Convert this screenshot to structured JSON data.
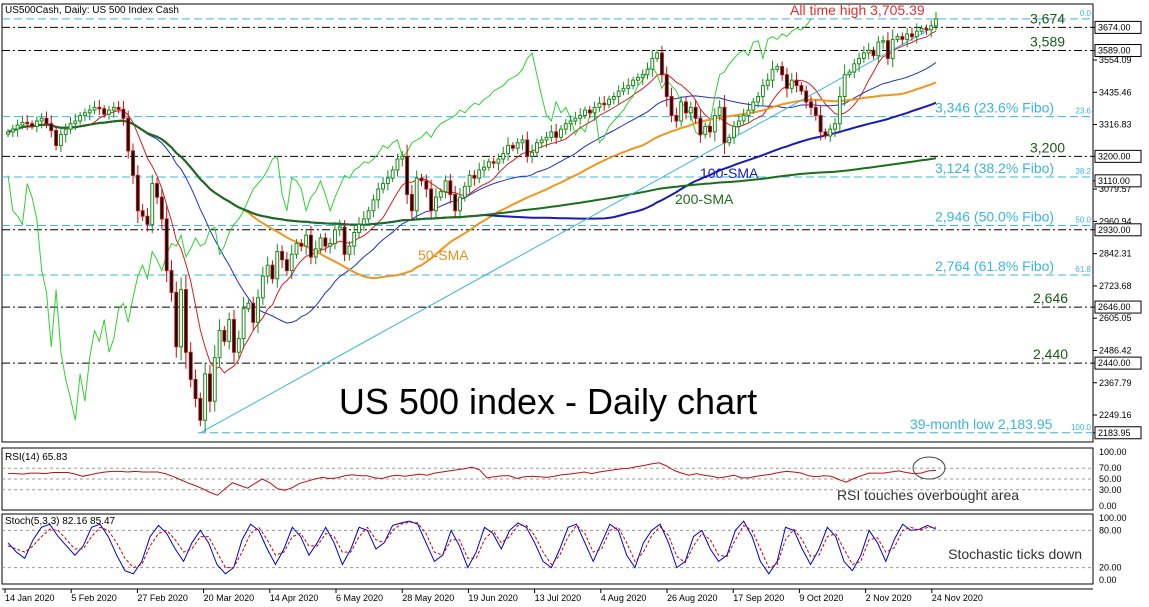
{
  "chart_data": [
    {
      "type": "candlestick",
      "title": "US500Cash, Daily:  US 500 Index Cash",
      "headline": "US 500 index - Daily chart",
      "ylim": [
        2150,
        3760
      ],
      "y_ticks": [
        "3674.00",
        "3589.00",
        "3554.09",
        "3435.46",
        "3316.83",
        "3200.00",
        "3110.00",
        "3079.57",
        "2960.94",
        "2930.00",
        "2842.31",
        "2723.68",
        "2646.00",
        "2605.05",
        "2486.42",
        "2440.00",
        "2367.79",
        "2249.16",
        "2183.95"
      ],
      "y_tick_values": [
        3674,
        3589,
        3554.09,
        3435.46,
        3316.83,
        3200,
        3110,
        3079.57,
        2960.94,
        2930,
        2842.31,
        2723.68,
        2646,
        2605.05,
        2486.42,
        2440,
        2367.79,
        2249.16,
        2183.95
      ],
      "price_boxes": [
        "3674.00",
        "3589.00",
        "3200.00",
        "3110.00",
        "2930.00",
        "2646.00",
        "2440.00",
        "2183.95"
      ],
      "x_labels": [
        "14 Jan 2020",
        "5 Feb 2020",
        "27 Feb 2020",
        "20 Mar 2020",
        "14 Apr 2020",
        "6 May 2020",
        "28 May 2020",
        "19 Jun 2020",
        "13 Jul 2020",
        "4 Aug 2020",
        "26 Aug 2020",
        "17 Sep 2020",
        "9 Oct 2020",
        "2 Nov 2020",
        "24 Nov 2020"
      ],
      "levels": [
        {
          "name": "All time high",
          "label": "All time high 3,705.39",
          "value": 3705.39,
          "style": "dashed",
          "color": "#3cb4e0"
        },
        {
          "name": "3,674",
          "label": "3,674",
          "value": 3674,
          "style": "dashdot",
          "color": "#000000"
        },
        {
          "name": "3,589",
          "label": "3,589",
          "value": 3589,
          "style": "dashdot",
          "color": "#000000"
        },
        {
          "name": "23.6% Fibo",
          "label": "3,346 (23.6% Fibo)",
          "value": 3346,
          "style": "dashed",
          "color": "#3cb4e0"
        },
        {
          "name": "3,200",
          "label": "3,200",
          "value": 3200,
          "style": "dashdot",
          "color": "#000000"
        },
        {
          "name": "38.2% Fibo",
          "label": "3,124 (38.2% Fibo)",
          "value": 3124,
          "style": "dashed",
          "color": "#3cb4e0"
        },
        {
          "name": "50.0% Fibo",
          "label": "2,946 (50.0% Fibo)",
          "value": 2946,
          "style": "dashed",
          "color": "#3cb4e0"
        },
        {
          "name": "2,930",
          "label": "",
          "value": 2930,
          "style": "dashdot",
          "color": "#000000"
        },
        {
          "name": "61.8% Fibo",
          "label": "2,764 (61.8% Fibo)",
          "value": 2764,
          "style": "dashed",
          "color": "#3cb4e0"
        },
        {
          "name": "2,646",
          "label": "2,646",
          "value": 2646,
          "style": "dashdot",
          "color": "#000000"
        },
        {
          "name": "2,440",
          "label": "2,440",
          "value": 2440,
          "style": "dashdot",
          "color": "#000000"
        },
        {
          "name": "39-month low",
          "label": "39-month low 2,183.95",
          "value": 2183.95,
          "style": "dashed",
          "color": "#3cb4e0"
        }
      ],
      "fib_tags": [
        "0.0",
        "23.6",
        "38.2",
        "50.0",
        "61.8",
        "100.0"
      ],
      "fib_tag_values": [
        3705.39,
        3346,
        3124,
        2946,
        2764,
        2183.95
      ],
      "annotations": [
        "100-SMA",
        "200-SMA",
        "50-SMA"
      ],
      "closes": [
        3290,
        3300,
        3315,
        3325,
        3320,
        3310,
        3330,
        3340,
        3320,
        3295,
        3240,
        3280,
        3300,
        3320,
        3330,
        3350,
        3360,
        3370,
        3380,
        3375,
        3355,
        3370,
        3380,
        3373,
        3340,
        3220,
        3130,
        3000,
        2980,
        2950,
        3100,
        3050,
        2970,
        2780,
        2700,
        2500,
        2710,
        2480,
        2380,
        2310,
        2230,
        2400,
        2300,
        2460,
        2560,
        2520,
        2600,
        2480,
        2530,
        2640,
        2660,
        2590,
        2680,
        2760,
        2800,
        2750,
        2850,
        2820,
        2780,
        2840,
        2880,
        2870,
        2910,
        2830,
        2860,
        2900,
        2870,
        2880,
        2930,
        2940,
        2840,
        2870,
        2920,
        2950,
        2970,
        3000,
        3040,
        3080,
        3100,
        3120,
        3150,
        3190,
        3200,
        3060,
        3000,
        3120,
        3110,
        3080,
        3000,
        3050,
        3070,
        3110,
        3060,
        3000,
        3050,
        3090,
        3130,
        3120,
        3150,
        3160,
        3180,
        3175,
        3190,
        3210,
        3240,
        3230,
        3250,
        3260,
        3200,
        3215,
        3250,
        3260,
        3270,
        3290,
        3270,
        3300,
        3320,
        3330,
        3340,
        3350,
        3370,
        3360,
        3380,
        3395,
        3390,
        3410,
        3420,
        3440,
        3450,
        3460,
        3480,
        3490,
        3500,
        3520,
        3560,
        3580,
        3500,
        3420,
        3350,
        3330,
        3400,
        3360,
        3380,
        3340,
        3280,
        3310,
        3290,
        3350,
        3380,
        3250,
        3270,
        3310,
        3330,
        3350,
        3370,
        3400,
        3420,
        3460,
        3480,
        3520,
        3530,
        3500,
        3450,
        3480,
        3460,
        3440,
        3400,
        3380,
        3350,
        3290,
        3275,
        3300,
        3320,
        3420,
        3500,
        3510,
        3540,
        3560,
        3580,
        3590,
        3570,
        3620,
        3625,
        3560,
        3630,
        3640,
        3630,
        3650,
        3640,
        3660,
        3670,
        3665,
        3680,
        3705
      ]
    },
    {
      "type": "line",
      "title": "RSI(14) 65.83",
      "y_ticks": [
        "100.00",
        "70.00",
        "50.00",
        "30.00",
        "0.00"
      ],
      "y_tick_values": [
        100,
        70,
        50,
        30,
        0
      ],
      "guides": [
        70,
        50,
        30
      ],
      "annotation": "RSI touches overbought area",
      "values": [
        60,
        60,
        59,
        61,
        61,
        60,
        62,
        62,
        62,
        59,
        55,
        58,
        61,
        63,
        64,
        64,
        63,
        64,
        63,
        63,
        63,
        60,
        55,
        49,
        43,
        38,
        32,
        25,
        20,
        32,
        43,
        38,
        33,
        42,
        50,
        43,
        32,
        29,
        34,
        42,
        46,
        50,
        53,
        51,
        52,
        56,
        58,
        56,
        56,
        52,
        51,
        55,
        57,
        55,
        57,
        59,
        57,
        61,
        63,
        65,
        67,
        69,
        72,
        67,
        52,
        54,
        56,
        56,
        51,
        54,
        55,
        54,
        53,
        55,
        58,
        59,
        61,
        63,
        60,
        63,
        65,
        67,
        69,
        70,
        73,
        75,
        78,
        80,
        74,
        66,
        61,
        57,
        60,
        57,
        55,
        52,
        54,
        57,
        52,
        52,
        55,
        57,
        59,
        62,
        64,
        63,
        61,
        56,
        54,
        56,
        55,
        49,
        44,
        51,
        56,
        61,
        61,
        61,
        63,
        65,
        62,
        60,
        61,
        65,
        66
      ]
    },
    {
      "type": "line",
      "title": "Stoch(5,3,3) 82.16 85.47",
      "y_ticks": [
        "100.00",
        "80.00",
        "20.00",
        "0.00"
      ],
      "y_tick_values": [
        100,
        80,
        20,
        0
      ],
      "guides": [
        80,
        20
      ],
      "annotation": "Stochastic ticks down",
      "series": [
        {
          "color": "#0000cc",
          "style": "solid",
          "values": [
            60,
            45,
            35,
            65,
            85,
            90,
            70,
            55,
            40,
            55,
            85,
            90,
            70,
            40,
            15,
            10,
            30,
            70,
            88,
            75,
            50,
            30,
            60,
            80,
            60,
            25,
            10,
            20,
            65,
            90,
            80,
            50,
            25,
            50,
            85,
            70,
            40,
            60,
            85,
            60,
            25,
            50,
            85,
            80,
            50,
            60,
            88,
            92,
            95,
            90,
            60,
            30,
            40,
            80,
            55,
            20,
            45,
            85,
            75,
            50,
            80,
            92,
            85,
            60,
            30,
            20,
            50,
            85,
            90,
            60,
            30,
            60,
            90,
            80,
            40,
            20,
            60,
            80,
            90,
            60,
            20,
            30,
            70,
            80,
            50,
            30,
            40,
            80,
            95,
            70,
            30,
            10,
            30,
            85,
            80,
            50,
            25,
            50,
            85,
            70,
            30,
            15,
            40,
            80,
            60,
            30,
            65,
            90,
            80,
            82,
            88,
            82
          ]
        },
        {
          "color": "#cc0000",
          "style": "dashed",
          "values": [
            55,
            50,
            45,
            55,
            70,
            82,
            80,
            65,
            50,
            50,
            70,
            85,
            80,
            60,
            35,
            20,
            25,
            55,
            75,
            80,
            65,
            45,
            50,
            70,
            70,
            45,
            20,
            20,
            45,
            75,
            85,
            65,
            40,
            45,
            70,
            75,
            55,
            55,
            75,
            70,
            45,
            45,
            70,
            85,
            65,
            60,
            80,
            90,
            93,
            92,
            75,
            45,
            40,
            65,
            65,
            35,
            35,
            65,
            80,
            60,
            70,
            88,
            88,
            72,
            45,
            25,
            40,
            70,
            88,
            75,
            45,
            50,
            80,
            85,
            60,
            30,
            45,
            72,
            86,
            72,
            38,
            28,
            55,
            75,
            65,
            40,
            38,
            65,
            88,
            80,
            50,
            20,
            25,
            65,
            82,
            65,
            38,
            40,
            70,
            75,
            50,
            25,
            30,
            65,
            68,
            45,
            52,
            80,
            85,
            80,
            85,
            85
          ]
        }
      ]
    }
  ]
}
